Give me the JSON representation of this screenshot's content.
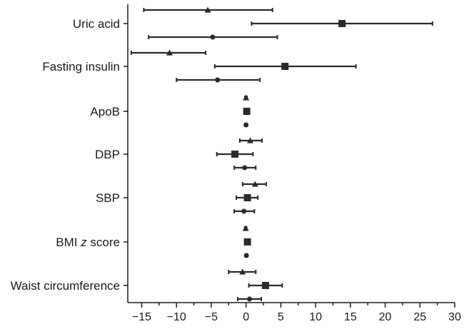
{
  "chart_data": {
    "type": "forest",
    "title": "",
    "xlabel": "",
    "ylabel": "",
    "xlim": [
      -17,
      30
    ],
    "xticks": [
      -15,
      -10,
      -5,
      0,
      5,
      10,
      15,
      20,
      25,
      30
    ],
    "grid": false,
    "legend": "none",
    "colors": {
      "marks": "#2a2a2a",
      "axis": "#1a1a1a"
    },
    "categories": [
      {
        "label": "Uric acid",
        "estimates": [
          {
            "marker": "triangle",
            "value": -5.5,
            "lower": -14.7,
            "upper": 3.8
          },
          {
            "marker": "square",
            "value": 13.8,
            "lower": 0.8,
            "upper": 26.8
          },
          {
            "marker": "circle",
            "value": -4.8,
            "lower": -14.0,
            "upper": 4.5
          }
        ]
      },
      {
        "label": "Fasting insulin",
        "estimates": [
          {
            "marker": "triangle",
            "value": -11.0,
            "lower": -16.5,
            "upper": -5.8
          },
          {
            "marker": "square",
            "value": 5.6,
            "lower": -4.5,
            "upper": 15.8
          },
          {
            "marker": "circle",
            "value": -4.1,
            "lower": -10.0,
            "upper": 2.0
          }
        ]
      },
      {
        "label": "ApoB",
        "estimates": [
          {
            "marker": "triangle",
            "value": 0.0,
            "lower": -0.15,
            "upper": 0.15
          },
          {
            "marker": "square",
            "value": 0.1,
            "lower": -0.1,
            "upper": 0.3
          },
          {
            "marker": "circle",
            "value": 0.0,
            "lower": -0.15,
            "upper": 0.15
          }
        ]
      },
      {
        "label": "DBP",
        "estimates": [
          {
            "marker": "triangle",
            "value": 0.6,
            "lower": -0.9,
            "upper": 2.3
          },
          {
            "marker": "square",
            "value": -1.6,
            "lower": -4.2,
            "upper": 1.0
          },
          {
            "marker": "circle",
            "value": -0.2,
            "lower": -1.7,
            "upper": 1.4
          }
        ]
      },
      {
        "label": "SBP",
        "estimates": [
          {
            "marker": "triangle",
            "value": 1.3,
            "lower": -0.5,
            "upper": 2.9
          },
          {
            "marker": "square",
            "value": 0.2,
            "lower": -1.4,
            "upper": 1.7
          },
          {
            "marker": "circle",
            "value": -0.3,
            "lower": -1.7,
            "upper": 1.2
          }
        ]
      },
      {
        "label": "BMI z score",
        "label_parts": [
          "BMI ",
          "z",
          " score"
        ],
        "estimates": [
          {
            "marker": "triangle",
            "value": -0.05,
            "lower": -0.2,
            "upper": 0.1
          },
          {
            "marker": "square",
            "value": 0.2,
            "lower": 0.05,
            "upper": 0.35
          },
          {
            "marker": "circle",
            "value": 0.05,
            "lower": -0.1,
            "upper": 0.2
          }
        ]
      },
      {
        "label": "Waist circumference",
        "estimates": [
          {
            "marker": "triangle",
            "value": -0.5,
            "lower": -2.5,
            "upper": 1.4
          },
          {
            "marker": "square",
            "value": 2.8,
            "lower": 0.4,
            "upper": 5.2
          },
          {
            "marker": "circle",
            "value": 0.5,
            "lower": -1.2,
            "upper": 2.2
          }
        ]
      }
    ]
  }
}
